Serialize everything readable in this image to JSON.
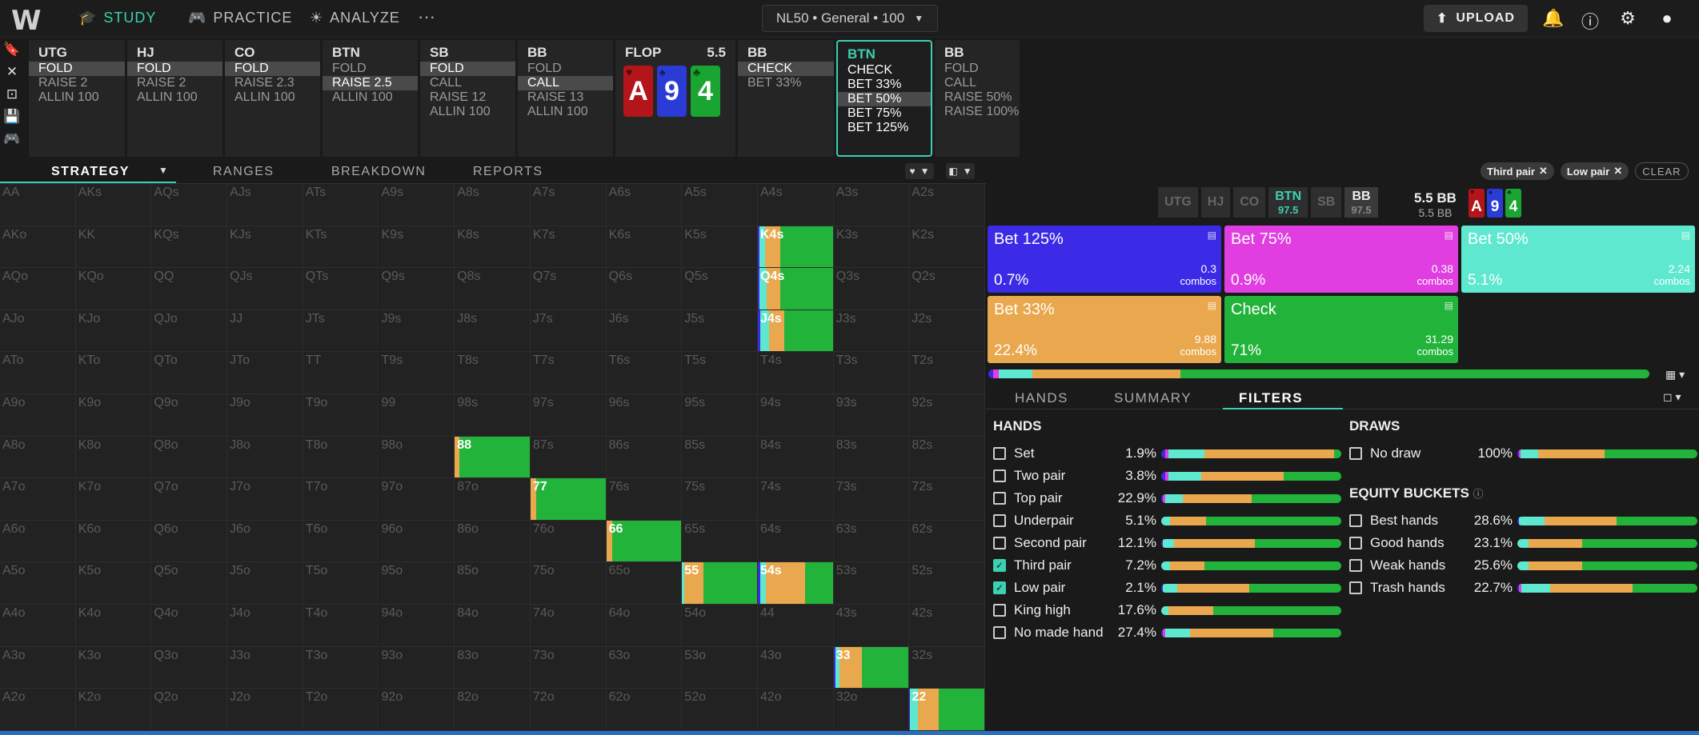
{
  "nav": {
    "logo": "W",
    "items": [
      {
        "label": "STUDY",
        "icon": "graduation-cap-icon",
        "active": true
      },
      {
        "label": "PRACTICE",
        "icon": "gamepad-icon",
        "active": false
      },
      {
        "label": "ANALYZE",
        "icon": "lightbulb-icon",
        "active": false
      }
    ],
    "more": "···",
    "selector": "NL50 • General • 100",
    "upload": "UPLOAD"
  },
  "colors": {
    "accent": "#3ad0b0",
    "bet125": "#3b2ae6",
    "bet75": "#e03ee0",
    "bet50": "#5de8cf",
    "bet33": "#e9a84d",
    "check": "#22b33a",
    "heart": "#b3151a",
    "spade": "#2a3bd6",
    "club": "#1aa432"
  },
  "actions": [
    {
      "pos": "UTG",
      "opts": [
        {
          "t": "FOLD",
          "sel": true
        },
        {
          "t": "RAISE 2"
        },
        {
          "t": "ALLIN 100"
        }
      ]
    },
    {
      "pos": "HJ",
      "opts": [
        {
          "t": "FOLD",
          "sel": true
        },
        {
          "t": "RAISE 2"
        },
        {
          "t": "ALLIN 100"
        }
      ]
    },
    {
      "pos": "CO",
      "opts": [
        {
          "t": "FOLD",
          "sel": true
        },
        {
          "t": "RAISE 2.3"
        },
        {
          "t": "ALLIN 100"
        }
      ]
    },
    {
      "pos": "BTN",
      "opts": [
        {
          "t": "FOLD"
        },
        {
          "t": "RAISE 2.5",
          "sel": true
        },
        {
          "t": "ALLIN 100"
        }
      ]
    },
    {
      "pos": "SB",
      "opts": [
        {
          "t": "FOLD",
          "sel": true
        },
        {
          "t": "CALL"
        },
        {
          "t": "RAISE 12"
        },
        {
          "t": "ALLIN 100"
        }
      ]
    },
    {
      "pos": "BB",
      "opts": [
        {
          "t": "FOLD"
        },
        {
          "t": "CALL",
          "sel": true
        },
        {
          "t": "RAISE 13"
        },
        {
          "t": "ALLIN 100"
        }
      ]
    }
  ],
  "flop": {
    "label": "FLOP",
    "pot": "5.5",
    "cards": [
      {
        "rank": "A",
        "suit": "heart"
      },
      {
        "rank": "9",
        "suit": "spade"
      },
      {
        "rank": "4",
        "suit": "club"
      }
    ]
  },
  "postflop": [
    {
      "pos": "BB",
      "opts": [
        {
          "t": "CHECK",
          "sel": true
        },
        {
          "t": "BET 33%"
        }
      ]
    },
    {
      "pos": "BTN",
      "active": true,
      "opts": [
        {
          "t": "CHECK"
        },
        {
          "t": "BET 33%"
        },
        {
          "t": "BET 50%",
          "sel": true
        },
        {
          "t": "BET 75%"
        },
        {
          "t": "BET 125%"
        }
      ]
    },
    {
      "pos": "BB",
      "opts": [
        {
          "t": "FOLD"
        },
        {
          "t": "CALL"
        },
        {
          "t": "RAISE 50%"
        },
        {
          "t": "RAISE 100%"
        }
      ]
    }
  ],
  "subtabs": [
    "STRATEGY",
    "RANGES",
    "BREAKDOWN",
    "REPORTS"
  ],
  "grid": {
    "rows": [
      [
        "AA",
        "AKs",
        "AQs",
        "AJs",
        "ATs",
        "A9s",
        "A8s",
        "A7s",
        "A6s",
        "A5s",
        "A4s",
        "A3s",
        "A2s"
      ],
      [
        "AKo",
        "KK",
        "KQs",
        "KJs",
        "KTs",
        "K9s",
        "K8s",
        "K7s",
        "K6s",
        "K5s",
        "K4s",
        "K3s",
        "K2s"
      ],
      [
        "AQo",
        "KQo",
        "QQ",
        "QJs",
        "QTs",
        "Q9s",
        "Q8s",
        "Q7s",
        "Q6s",
        "Q5s",
        "Q4s",
        "Q3s",
        "Q2s"
      ],
      [
        "AJo",
        "KJo",
        "QJo",
        "JJ",
        "JTs",
        "J9s",
        "J8s",
        "J7s",
        "J6s",
        "J5s",
        "J4s",
        "J3s",
        "J2s"
      ],
      [
        "ATo",
        "KTo",
        "QTo",
        "JTo",
        "TT",
        "T9s",
        "T8s",
        "T7s",
        "T6s",
        "T5s",
        "T4s",
        "T3s",
        "T2s"
      ],
      [
        "A9o",
        "K9o",
        "Q9o",
        "J9o",
        "T9o",
        "99",
        "98s",
        "97s",
        "96s",
        "95s",
        "94s",
        "93s",
        "92s"
      ],
      [
        "A8o",
        "K8o",
        "Q8o",
        "J8o",
        "T8o",
        "98o",
        "88",
        "87s",
        "86s",
        "85s",
        "84s",
        "83s",
        "82s"
      ],
      [
        "A7o",
        "K7o",
        "Q7o",
        "J7o",
        "T7o",
        "97o",
        "87o",
        "77",
        "76s",
        "75s",
        "74s",
        "73s",
        "72s"
      ],
      [
        "A6o",
        "K6o",
        "Q6o",
        "J6o",
        "T6o",
        "96o",
        "86o",
        "76o",
        "66",
        "65s",
        "64s",
        "63s",
        "62s"
      ],
      [
        "A5o",
        "K5o",
        "Q5o",
        "J5o",
        "T5o",
        "95o",
        "85o",
        "75o",
        "65o",
        "55",
        "54s",
        "53s",
        "52s"
      ],
      [
        "A4o",
        "K4o",
        "Q4o",
        "J4o",
        "T4o",
        "94o",
        "84o",
        "74o",
        "64o",
        "54o",
        "44",
        "43s",
        "42s"
      ],
      [
        "A3o",
        "K3o",
        "Q3o",
        "J3o",
        "T3o",
        "93o",
        "83o",
        "73o",
        "63o",
        "53o",
        "43o",
        "33",
        "32s"
      ],
      [
        "A2o",
        "K2o",
        "Q2o",
        "J2o",
        "T2o",
        "92o",
        "82o",
        "72o",
        "62o",
        "52o",
        "42o",
        "32o",
        "22"
      ]
    ],
    "highlights": {
      "K4s": [
        0.02,
        0.0,
        0.08,
        0.2,
        0.7
      ],
      "Q4s": [
        0.02,
        0.0,
        0.1,
        0.18,
        0.7
      ],
      "J4s": [
        0.03,
        0.0,
        0.12,
        0.2,
        0.65
      ],
      "88": [
        0.0,
        0.0,
        0.0,
        0.06,
        0.94
      ],
      "77": [
        0.0,
        0.0,
        0.0,
        0.08,
        0.92
      ],
      "66": [
        0.0,
        0.0,
        0.0,
        0.08,
        0.92
      ],
      "55": [
        0.0,
        0.0,
        0.03,
        0.25,
        0.72
      ],
      "54s": [
        0.03,
        0.0,
        0.08,
        0.52,
        0.37
      ],
      "33": [
        0.03,
        0.0,
        0.05,
        0.3,
        0.62
      ],
      "22": [
        0.01,
        0.0,
        0.1,
        0.28,
        0.61
      ]
    }
  },
  "chips": [
    "Third pair",
    "Low pair"
  ],
  "clear": "CLEAR",
  "positions": [
    {
      "pos": "UTG"
    },
    {
      "pos": "HJ"
    },
    {
      "pos": "CO"
    },
    {
      "pos": "BTN",
      "sub": "97.5",
      "active": true
    },
    {
      "pos": "SB"
    },
    {
      "pos": "BB",
      "sub": "97.5",
      "lit": true
    }
  ],
  "pot": {
    "main": "5.5 BB",
    "sub": "5.5 BB"
  },
  "strategy": [
    {
      "name": "Bet 125%",
      "pct": "0.7%",
      "combos": "0.3",
      "color": "bet125"
    },
    {
      "name": "Bet 75%",
      "pct": "0.9%",
      "combos": "0.38",
      "color": "bet75"
    },
    {
      "name": "Bet 50%",
      "pct": "5.1%",
      "combos": "2.24",
      "color": "bet50"
    },
    {
      "name": "Bet 33%",
      "pct": "22.4%",
      "combos": "9.88",
      "color": "bet33"
    },
    {
      "name": "Check",
      "pct": "71%",
      "combos": "31.29",
      "color": "check"
    }
  ],
  "combos_label": "combos",
  "summary_freq": [
    0.007,
    0.009,
    0.051,
    0.224,
    0.71
  ],
  "rtabs": [
    "HANDS",
    "SUMMARY",
    "FILTERS"
  ],
  "hands_title": "HANDS",
  "hands": [
    {
      "name": "Set",
      "pct": "1.9%",
      "checked": false,
      "mix": [
        0.02,
        0.02,
        0.2,
        0.72,
        0.04
      ]
    },
    {
      "name": "Two pair",
      "pct": "3.8%",
      "checked": false,
      "mix": [
        0.02,
        0.02,
        0.18,
        0.46,
        0.32
      ]
    },
    {
      "name": "Top pair",
      "pct": "22.9%",
      "checked": false,
      "mix": [
        0.01,
        0.01,
        0.1,
        0.38,
        0.5
      ]
    },
    {
      "name": "Underpair",
      "pct": "5.1%",
      "checked": false,
      "mix": [
        0.0,
        0.0,
        0.05,
        0.2,
        0.75
      ]
    },
    {
      "name": "Second pair",
      "pct": "12.1%",
      "checked": false,
      "mix": [
        0.01,
        0.0,
        0.06,
        0.45,
        0.48
      ]
    },
    {
      "name": "Third pair",
      "pct": "7.2%",
      "checked": true,
      "mix": [
        0.0,
        0.0,
        0.05,
        0.19,
        0.76
      ]
    },
    {
      "name": "Low pair",
      "pct": "2.1%",
      "checked": true,
      "mix": [
        0.01,
        0.0,
        0.08,
        0.4,
        0.51
      ]
    },
    {
      "name": "King high",
      "pct": "17.6%",
      "checked": false,
      "mix": [
        0.0,
        0.0,
        0.04,
        0.25,
        0.71
      ]
    },
    {
      "name": "No made hand",
      "pct": "27.4%",
      "checked": false,
      "mix": [
        0.01,
        0.01,
        0.14,
        0.46,
        0.38
      ]
    }
  ],
  "draws_title": "DRAWS",
  "draws": [
    {
      "name": "No draw",
      "pct": "100%",
      "checked": false,
      "mix": [
        0.007,
        0.009,
        0.1,
        0.37,
        0.52
      ]
    }
  ],
  "equity_title": "EQUITY BUCKETS",
  "equity": [
    {
      "name": "Best hands",
      "pct": "28.6%",
      "checked": false,
      "mix": [
        0.01,
        0.0,
        0.14,
        0.4,
        0.45
      ]
    },
    {
      "name": "Good hands",
      "pct": "23.1%",
      "checked": false,
      "mix": [
        0.0,
        0.0,
        0.06,
        0.3,
        0.64
      ]
    },
    {
      "name": "Weak hands",
      "pct": "25.6%",
      "checked": false,
      "mix": [
        0.0,
        0.0,
        0.06,
        0.3,
        0.64
      ]
    },
    {
      "name": "Trash hands",
      "pct": "22.7%",
      "checked": false,
      "mix": [
        0.01,
        0.01,
        0.16,
        0.46,
        0.36
      ]
    }
  ]
}
